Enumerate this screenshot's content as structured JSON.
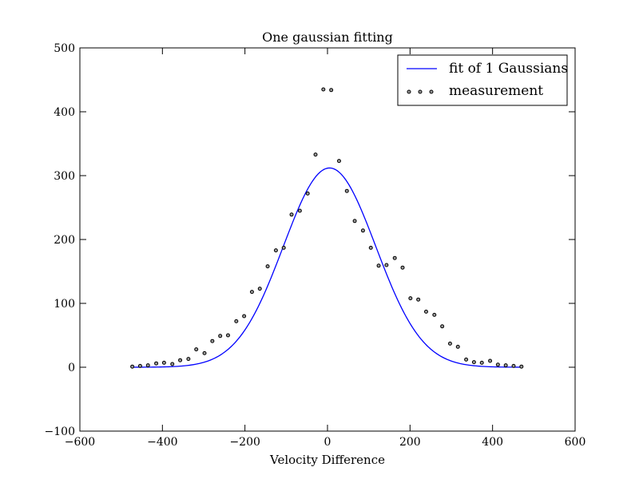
{
  "chart_data": {
    "type": "line",
    "title": "One gaussian fitting",
    "xlabel": "Velocity Difference",
    "ylabel": "",
    "xlim": [
      -600,
      600
    ],
    "ylim": [
      -100,
      500
    ],
    "xticks": [
      -600,
      -400,
      -200,
      0,
      200,
      400,
      600
    ],
    "yticks": [
      -100,
      0,
      100,
      200,
      300,
      400,
      500
    ],
    "xtick_labels": [
      "−600",
      "−400",
      "−200",
      "0",
      "200",
      "400",
      "600"
    ],
    "ytick_labels": [
      "−100",
      "0",
      "100",
      "200",
      "300",
      "400",
      "500"
    ],
    "grid": false,
    "legend_position": "top-right",
    "colors": {
      "fit": "#0000ff",
      "measurement_edge": "#000000",
      "measurement_face": "#999999"
    },
    "fit": {
      "name": "fit of 1 Gaussians",
      "style": "line",
      "amplitude": 312,
      "center": 5,
      "sigma": 112,
      "x_range": [
        -475,
        467
      ]
    },
    "series": [
      {
        "name": "measurement",
        "style": "scatter",
        "points": [
          [
            -473,
            1
          ],
          [
            -454,
            2
          ],
          [
            -435,
            3
          ],
          [
            -415,
            6
          ],
          [
            -396,
            7
          ],
          [
            -376,
            5
          ],
          [
            -357,
            11
          ],
          [
            -337,
            13
          ],
          [
            -318,
            28
          ],
          [
            -298,
            22
          ],
          [
            -279,
            41
          ],
          [
            -260,
            49
          ],
          [
            -241,
            50
          ],
          [
            -221,
            72
          ],
          [
            -202,
            80
          ],
          [
            -183,
            118
          ],
          [
            -164,
            123
          ],
          [
            -145,
            158
          ],
          [
            -125,
            183
          ],
          [
            -106,
            187
          ],
          [
            -87,
            239
          ],
          [
            -67,
            245
          ],
          [
            -48,
            272
          ],
          [
            -29,
            333
          ],
          [
            -10,
            435
          ],
          [
            9,
            434
          ],
          [
            28,
            323
          ],
          [
            47,
            276
          ],
          [
            66,
            229
          ],
          [
            86,
            214
          ],
          [
            105,
            187
          ],
          [
            124,
            159
          ],
          [
            143,
            160
          ],
          [
            163,
            171
          ],
          [
            182,
            156
          ],
          [
            201,
            108
          ],
          [
            220,
            106
          ],
          [
            239,
            87
          ],
          [
            259,
            82
          ],
          [
            278,
            64
          ],
          [
            297,
            37
          ],
          [
            316,
            32
          ],
          [
            336,
            12
          ],
          [
            355,
            8
          ],
          [
            374,
            7
          ],
          [
            394,
            10
          ],
          [
            413,
            4
          ],
          [
            432,
            3
          ],
          [
            451,
            2
          ],
          [
            470,
            1
          ]
        ]
      }
    ]
  }
}
